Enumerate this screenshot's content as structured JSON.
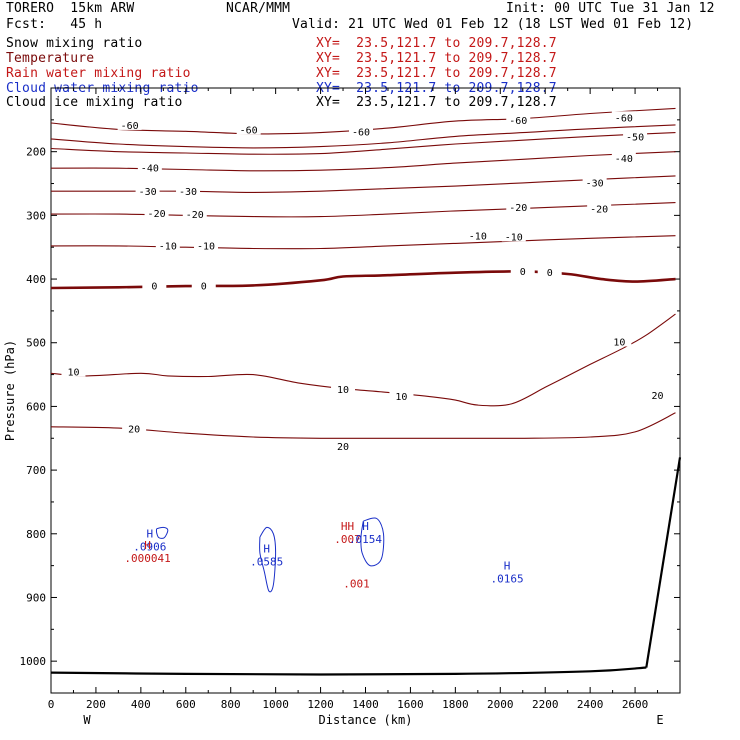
{
  "header": {
    "model": "TORERO  15km ARW",
    "org": "NCAR/MMM",
    "init": "Init: 00 UTC Tue 31 Jan 12",
    "fcst": "Fcst:   45 h",
    "valid": "Valid: 21 UTC Wed 01 Feb 12 (18 LST Wed 01 Feb 12)"
  },
  "fields": [
    {
      "name": "Snow mixing ratio",
      "xy": "XY=  23.5,121.7 to 209.7,128.7",
      "color": "#000000"
    },
    {
      "name": "Temperature",
      "xy": "XY=  23.5,121.7 to 209.7,128.7",
      "color": "#7a0a0a"
    },
    {
      "name": "Rain water mixing ratio",
      "xy": "XY=  23.5,121.7 to 209.7,128.7",
      "color": "#c41818"
    },
    {
      "name": "Cloud water mixing ratio",
      "xy": "XY=  23.5,121.7 to 209.7,128.7",
      "color": "#1a2fc8"
    },
    {
      "name": "Cloud ice mixing ratio",
      "xy": "XY=  23.5,121.7 to 209.7,128.7",
      "color": "#000000"
    }
  ],
  "chart_data": {
    "type": "contour",
    "xlabel": "Distance (km)",
    "ylabel": "Pressure (hPa)",
    "xlim": [
      0,
      2800
    ],
    "ylim": [
      1050,
      100
    ],
    "x_ticks": [
      0,
      200,
      400,
      600,
      800,
      1000,
      1200,
      1400,
      1600,
      1800,
      2000,
      2200,
      2400,
      2600
    ],
    "y_ticks": [
      200,
      300,
      400,
      500,
      600,
      700,
      800,
      900,
      1000
    ],
    "x_end_labels": {
      "left": "W",
      "right": "E"
    },
    "temperature_contours": [
      {
        "value": -60,
        "points": [
          [
            0,
            155
          ],
          [
            300,
            165
          ],
          [
            600,
            168
          ],
          [
            900,
            172
          ],
          [
            1200,
            170
          ],
          [
            1500,
            163
          ],
          [
            1800,
            152
          ],
          [
            2100,
            148
          ],
          [
            2400,
            140
          ],
          [
            2780,
            132
          ]
        ],
        "labels": [
          [
            350,
            158
          ],
          [
            880,
            165
          ],
          [
            1380,
            168
          ],
          [
            2080,
            150
          ],
          [
            2550,
            146
          ]
        ]
      },
      {
        "value": -60,
        "points": [
          [
            0,
            180
          ],
          [
            300,
            188
          ],
          [
            600,
            192
          ],
          [
            900,
            194
          ],
          [
            1200,
            192
          ],
          [
            1500,
            186
          ],
          [
            1800,
            176
          ],
          [
            2100,
            170
          ],
          [
            2400,
            164
          ],
          [
            2780,
            158
          ]
        ],
        "labels": []
      },
      {
        "value": -50,
        "points": [
          [
            0,
            195
          ],
          [
            300,
            200
          ],
          [
            600,
            202
          ],
          [
            900,
            204
          ],
          [
            1200,
            203
          ],
          [
            1500,
            196
          ],
          [
            1800,
            188
          ],
          [
            2100,
            182
          ],
          [
            2400,
            176
          ],
          [
            2780,
            170
          ]
        ],
        "labels": [
          [
            2600,
            176
          ]
        ]
      },
      {
        "value": -40,
        "points": [
          [
            0,
            226
          ],
          [
            300,
            226
          ],
          [
            600,
            228
          ],
          [
            900,
            230
          ],
          [
            1200,
            229
          ],
          [
            1500,
            225
          ],
          [
            1800,
            218
          ],
          [
            2100,
            212
          ],
          [
            2400,
            206
          ],
          [
            2780,
            200
          ]
        ],
        "labels": [
          [
            440,
            225
          ],
          [
            2550,
            210
          ]
        ]
      },
      {
        "value": -30,
        "points": [
          [
            0,
            262
          ],
          [
            300,
            262
          ],
          [
            600,
            262
          ],
          [
            900,
            264
          ],
          [
            1200,
            262
          ],
          [
            1500,
            258
          ],
          [
            1800,
            254
          ],
          [
            2100,
            249
          ],
          [
            2400,
            244
          ],
          [
            2780,
            238
          ]
        ],
        "labels": [
          [
            430,
            262
          ],
          [
            610,
            262
          ],
          [
            2420,
            248
          ]
        ]
      },
      {
        "value": -20,
        "points": [
          [
            0,
            298
          ],
          [
            300,
            298
          ],
          [
            600,
            300
          ],
          [
            900,
            302
          ],
          [
            1200,
            302
          ],
          [
            1500,
            298
          ],
          [
            1800,
            293
          ],
          [
            2100,
            289
          ],
          [
            2400,
            285
          ],
          [
            2780,
            280
          ]
        ],
        "labels": [
          [
            470,
            296
          ],
          [
            640,
            298
          ],
          [
            2080,
            287
          ],
          [
            2440,
            289
          ]
        ]
      },
      {
        "value": -10,
        "points": [
          [
            0,
            348
          ],
          [
            300,
            348
          ],
          [
            600,
            350
          ],
          [
            900,
            352
          ],
          [
            1200,
            352
          ],
          [
            1500,
            348
          ],
          [
            1800,
            344
          ],
          [
            2100,
            340
          ],
          [
            2400,
            336
          ],
          [
            2780,
            332
          ]
        ],
        "labels": [
          [
            520,
            347
          ],
          [
            690,
            347
          ],
          [
            1900,
            332
          ],
          [
            2060,
            333
          ]
        ]
      },
      {
        "value": 0,
        "points": [
          [
            0,
            414
          ],
          [
            300,
            413
          ],
          [
            600,
            411
          ],
          [
            900,
            410
          ],
          [
            1200,
            402
          ],
          [
            1300,
            396
          ],
          [
            1500,
            394
          ],
          [
            1800,
            390
          ],
          [
            2100,
            388
          ],
          [
            2300,
            392
          ],
          [
            2450,
            400
          ],
          [
            2600,
            404
          ],
          [
            2780,
            400
          ]
        ],
        "labels": [
          [
            460,
            410
          ],
          [
            680,
            410
          ],
          [
            2100,
            387
          ],
          [
            2220,
            389
          ]
        ],
        "bold": true
      },
      {
        "value": 10,
        "points": [
          [
            0,
            548
          ],
          [
            150,
            552
          ],
          [
            400,
            548
          ],
          [
            520,
            552
          ],
          [
            700,
            553
          ],
          [
            900,
            550
          ],
          [
            1100,
            563
          ],
          [
            1300,
            572
          ],
          [
            1500,
            578
          ],
          [
            1700,
            585
          ],
          [
            1800,
            590
          ],
          [
            1900,
            598
          ],
          [
            2050,
            596
          ],
          [
            2200,
            570
          ],
          [
            2300,
            552
          ],
          [
            2400,
            534
          ],
          [
            2550,
            508
          ],
          [
            2650,
            488
          ],
          [
            2780,
            455
          ]
        ],
        "labels": [
          [
            100,
            545
          ],
          [
            1300,
            573
          ],
          [
            1560,
            584
          ],
          [
            2530,
            498
          ]
        ]
      },
      {
        "value": 20,
        "points": [
          [
            0,
            632
          ],
          [
            300,
            634
          ],
          [
            600,
            642
          ],
          [
            900,
            648
          ],
          [
            1200,
            650
          ],
          [
            1500,
            650
          ],
          [
            1800,
            650
          ],
          [
            2100,
            650
          ],
          [
            2400,
            648
          ],
          [
            2600,
            640
          ],
          [
            2780,
            610
          ]
        ],
        "labels": [
          [
            370,
            635
          ],
          [
            1300,
            662
          ],
          [
            2700,
            582
          ]
        ]
      }
    ],
    "mixing_ratio_maxima": [
      {
        "field": "Cloud water mixing ratio",
        "label": "H",
        "value": ".0906",
        "x": 440,
        "p": 812
      },
      {
        "field": "Rain water mixing ratio",
        "label": "H",
        "value": ".000041",
        "x": 430,
        "p": 830
      },
      {
        "field": "Cloud water mixing ratio",
        "label": "H",
        "value": ".0585",
        "x": 960,
        "p": 836
      },
      {
        "field": "Rain water mixing ratio",
        "label": "HH",
        "value": ".007",
        "x": 1320,
        "p": 800
      },
      {
        "field": "Cloud water mixing ratio",
        "label": "H",
        "value": ".0154",
        "x": 1400,
        "p": 800
      },
      {
        "field": "Rain water mixing ratio",
        "label": "",
        "value": ".001",
        "x": 1360,
        "p": 870
      },
      {
        "field": "Cloud water mixing ratio",
        "label": "H",
        "value": ".0165",
        "x": 2030,
        "p": 862
      }
    ]
  }
}
